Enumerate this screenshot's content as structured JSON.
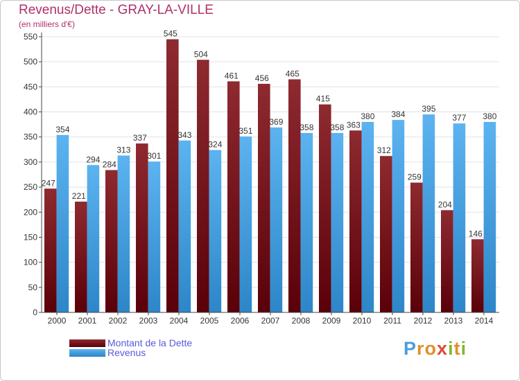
{
  "title": "Revenus/Dette - GRAY-LA-VILLE",
  "subtitle": "(en milliers d'€)",
  "logo_text": "Proxiti",
  "colors": {
    "dette": "#6b0d14",
    "revenus": "#3d99dd",
    "title": "#b0306a",
    "legend_text": "#5a5adc"
  },
  "chart_data": {
    "type": "bar",
    "categories": [
      "2000",
      "2001",
      "2002",
      "2003",
      "2004",
      "2005",
      "2006",
      "2007",
      "2008",
      "2009",
      "2010",
      "2011",
      "2012",
      "2013",
      "2014"
    ],
    "series": [
      {
        "name": "Montant de la Dette",
        "values": [
          247,
          221,
          284,
          337,
          545,
          504,
          461,
          456,
          465,
          415,
          363,
          312,
          259,
          204,
          146
        ]
      },
      {
        "name": "Revenus",
        "values": [
          354,
          294,
          313,
          301,
          343,
          324,
          351,
          369,
          358,
          358,
          380,
          384,
          395,
          377,
          380
        ]
      }
    ],
    "ylim": [
      0,
      550
    ],
    "yticks": [
      0,
      50,
      100,
      150,
      200,
      250,
      300,
      350,
      400,
      450,
      500,
      550
    ],
    "grid": true,
    "legend": "bottom-left"
  }
}
